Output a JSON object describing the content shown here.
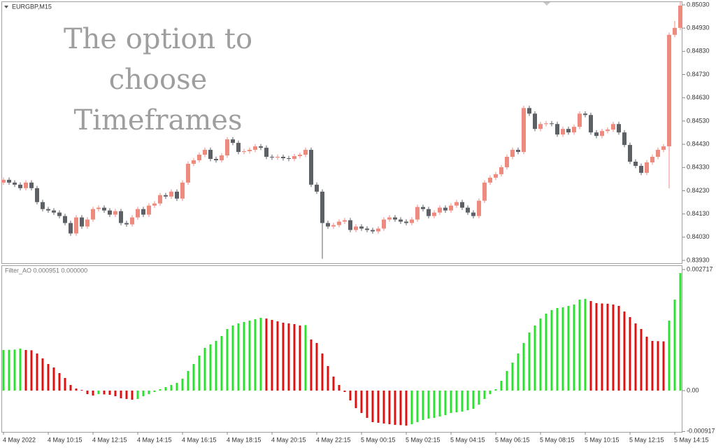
{
  "chart_data": [
    {
      "type": "candlestick",
      "title": "EURGBP,M15",
      "annotation": [
        "The option to",
        "choose",
        "Timeframes"
      ],
      "up_color": "#ef8a7f",
      "down_color": "#5d6166",
      "grid": false,
      "ylim": [
        0.83918,
        0.85045
      ],
      "yticks": [
        {
          "value": 0.8503,
          "label": "0.85030"
        },
        {
          "value": 0.8493,
          "label": "0.84930"
        },
        {
          "value": 0.8483,
          "label": "0.84830"
        },
        {
          "value": 0.8473,
          "label": "0.84730"
        },
        {
          "value": 0.8463,
          "label": "0.84630"
        },
        {
          "value": 0.8453,
          "label": "0.84530"
        },
        {
          "value": 0.8443,
          "label": "0.84430"
        },
        {
          "value": 0.8433,
          "label": "0.84330"
        },
        {
          "value": 0.8423,
          "label": "0.84230"
        },
        {
          "value": 0.8413,
          "label": "0.84130"
        },
        {
          "value": 0.8403,
          "label": "0.84030"
        },
        {
          "value": 0.8393,
          "label": "0.83930"
        }
      ],
      "categories": [
        "4 May 2022",
        null,
        null,
        null,
        null,
        null,
        null,
        null,
        "4 May 10:15",
        null,
        null,
        null,
        null,
        null,
        null,
        null,
        "4 May 12:15",
        null,
        null,
        null,
        null,
        null,
        null,
        null,
        "4 May 14:15",
        null,
        null,
        null,
        null,
        null,
        null,
        null,
        "4 May 16:15",
        null,
        null,
        null,
        null,
        null,
        null,
        null,
        "4 May 18:15",
        null,
        null,
        null,
        null,
        null,
        null,
        null,
        "4 May 20:15",
        null,
        null,
        null,
        null,
        null,
        null,
        null,
        "4 May 22:15",
        null,
        null,
        null,
        null,
        null,
        null,
        null,
        "5 May 00:15",
        null,
        null,
        null,
        null,
        null,
        null,
        null,
        "5 May 02:15",
        null,
        null,
        null,
        null,
        null,
        null,
        null,
        "5 May 04:15",
        null,
        null,
        null,
        null,
        null,
        null,
        null,
        "5 May 06:15",
        null,
        null,
        null,
        null,
        null,
        null,
        null,
        "5 May 08:15",
        null,
        null,
        null,
        null,
        null,
        null,
        null,
        "5 May 10:15",
        null,
        null,
        null,
        null,
        null,
        null,
        null,
        "5 May 12:15",
        null,
        null,
        null,
        null,
        null,
        null,
        null,
        "5 May 14:15",
        null
      ],
      "open": [
        0.84265,
        0.84277,
        0.84265,
        0.84256,
        0.84241,
        0.84265,
        0.84241,
        0.84181,
        0.84151,
        0.84145,
        0.84136,
        0.84121,
        0.84091,
        0.84046,
        0.84115,
        0.84076,
        0.84106,
        0.84151,
        0.84157,
        0.84145,
        0.84127,
        0.84142,
        0.84091,
        0.84085,
        0.84115,
        0.84151,
        0.84127,
        0.84166,
        0.84175,
        0.84211,
        0.84205,
        0.84226,
        0.84196,
        0.84265,
        0.84346,
        0.84361,
        0.84385,
        0.84406,
        0.84367,
        0.84361,
        0.84382,
        0.84451,
        0.84436,
        0.84397,
        0.844,
        0.84406,
        0.84421,
        0.84415,
        0.84376,
        0.84373,
        0.84376,
        0.8437,
        0.84367,
        0.84379,
        0.84385,
        0.84406,
        0.84256,
        0.84226,
        0.84091,
        0.84076,
        0.84082,
        0.84097,
        0.84103,
        0.84061,
        0.84076,
        0.84067,
        0.84061,
        0.84055,
        0.84067,
        0.84106,
        0.84115,
        0.84106,
        0.84097,
        0.84091,
        0.84106,
        0.8416,
        0.84151,
        0.84121,
        0.84136,
        0.84157,
        0.84145,
        0.84166,
        0.84181,
        0.84157,
        0.84136,
        0.84121,
        0.84187,
        0.84265,
        0.84286,
        0.84301,
        0.84331,
        0.84376,
        0.84406,
        0.84397,
        0.84586,
        0.84562,
        0.84496,
        0.84517,
        0.8452,
        0.84517,
        0.84472,
        0.84496,
        0.84481,
        0.84505,
        0.84562,
        0.84556,
        0.84481,
        0.84466,
        0.84487,
        0.84493,
        0.84517,
        0.84481,
        0.84427,
        0.84355,
        0.84337,
        0.84307,
        0.84352,
        0.84376,
        0.84406,
        0.84421,
        0.84901,
        0.84931
      ],
      "high": [
        0.84287,
        0.84287,
        0.84275,
        0.84266,
        0.84275,
        0.84275,
        0.84251,
        0.84191,
        0.84161,
        0.84155,
        0.84146,
        0.84131,
        0.84101,
        0.84125,
        0.84125,
        0.84116,
        0.84161,
        0.84167,
        0.84167,
        0.84155,
        0.84152,
        0.84152,
        0.84101,
        0.84125,
        0.84161,
        0.84161,
        0.84176,
        0.84185,
        0.84221,
        0.84221,
        0.84236,
        0.84236,
        0.84275,
        0.84356,
        0.84371,
        0.84395,
        0.84416,
        0.84416,
        0.84377,
        0.84392,
        0.84461,
        0.84461,
        0.84446,
        0.8441,
        0.84416,
        0.84431,
        0.84431,
        0.84425,
        0.84386,
        0.84386,
        0.84386,
        0.8438,
        0.84389,
        0.84395,
        0.84416,
        0.84416,
        0.84266,
        0.84236,
        0.84101,
        0.84092,
        0.84107,
        0.84113,
        0.84113,
        0.84086,
        0.84086,
        0.84077,
        0.84071,
        0.84077,
        0.84116,
        0.84125,
        0.84125,
        0.84116,
        0.84107,
        0.84116,
        0.8417,
        0.8417,
        0.84161,
        0.84146,
        0.84167,
        0.84167,
        0.84176,
        0.84191,
        0.84191,
        0.84167,
        0.84146,
        0.84197,
        0.84275,
        0.84296,
        0.84311,
        0.84341,
        0.84386,
        0.84416,
        0.84416,
        0.84596,
        0.84596,
        0.84572,
        0.84527,
        0.8453,
        0.8453,
        0.84527,
        0.84506,
        0.84506,
        0.84515,
        0.84572,
        0.84572,
        0.84566,
        0.84491,
        0.84497,
        0.84503,
        0.84527,
        0.84527,
        0.84491,
        0.84437,
        0.84365,
        0.84347,
        0.84362,
        0.84386,
        0.84416,
        0.84431,
        0.84911,
        0.84961,
        0.85045
      ],
      "low": [
        0.84255,
        0.84255,
        0.84246,
        0.84231,
        0.84231,
        0.84231,
        0.84171,
        0.84141,
        0.84135,
        0.84126,
        0.84111,
        0.84081,
        0.84036,
        0.84036,
        0.84066,
        0.84066,
        0.84096,
        0.84141,
        0.84135,
        0.84117,
        0.84117,
        0.84081,
        0.84075,
        0.84075,
        0.84105,
        0.84117,
        0.84117,
        0.84156,
        0.84165,
        0.84195,
        0.84195,
        0.84186,
        0.84186,
        0.84255,
        0.84336,
        0.84351,
        0.84375,
        0.84357,
        0.84351,
        0.84351,
        0.84372,
        0.84426,
        0.84387,
        0.84387,
        0.8439,
        0.84396,
        0.84405,
        0.84366,
        0.84363,
        0.84363,
        0.8436,
        0.84357,
        0.84357,
        0.84369,
        0.84375,
        0.84246,
        0.84216,
        0.83937,
        0.84066,
        0.84066,
        0.84072,
        0.84087,
        0.84051,
        0.84051,
        0.84057,
        0.84051,
        0.84045,
        0.84045,
        0.84057,
        0.84096,
        0.84096,
        0.84087,
        0.84081,
        0.84081,
        0.84096,
        0.84141,
        0.84111,
        0.84111,
        0.84126,
        0.84135,
        0.84135,
        0.84156,
        0.84147,
        0.84126,
        0.84111,
        0.84111,
        0.84177,
        0.84255,
        0.84276,
        0.84291,
        0.84321,
        0.84366,
        0.84387,
        0.84387,
        0.84552,
        0.84486,
        0.84486,
        0.84507,
        0.84507,
        0.84462,
        0.84462,
        0.84471,
        0.84471,
        0.84495,
        0.84546,
        0.84471,
        0.84456,
        0.84456,
        0.84477,
        0.84483,
        0.84471,
        0.84417,
        0.84345,
        0.84327,
        0.84297,
        0.84297,
        0.84342,
        0.84366,
        0.84396,
        0.8424,
        0.84891,
        0.84921
      ],
      "close": [
        0.84277,
        0.84265,
        0.84256,
        0.84241,
        0.84265,
        0.84241,
        0.84181,
        0.84151,
        0.84145,
        0.84136,
        0.84121,
        0.84091,
        0.84046,
        0.84115,
        0.84076,
        0.84106,
        0.84151,
        0.84157,
        0.84145,
        0.84127,
        0.84142,
        0.84091,
        0.84085,
        0.84115,
        0.84151,
        0.84127,
        0.84166,
        0.84175,
        0.84211,
        0.84205,
        0.84226,
        0.84196,
        0.84265,
        0.84346,
        0.84361,
        0.84385,
        0.84406,
        0.84367,
        0.84361,
        0.84382,
        0.84451,
        0.84436,
        0.84397,
        0.844,
        0.84406,
        0.84421,
        0.84415,
        0.84376,
        0.84373,
        0.84376,
        0.8437,
        0.84367,
        0.84379,
        0.84385,
        0.84406,
        0.84256,
        0.84226,
        0.84091,
        0.84076,
        0.84082,
        0.84097,
        0.84103,
        0.84061,
        0.84076,
        0.84067,
        0.84061,
        0.84055,
        0.84067,
        0.84106,
        0.84115,
        0.84106,
        0.84097,
        0.84091,
        0.84106,
        0.8416,
        0.84151,
        0.84121,
        0.84136,
        0.84157,
        0.84145,
        0.84166,
        0.84181,
        0.84157,
        0.84136,
        0.84121,
        0.84187,
        0.84265,
        0.84286,
        0.84301,
        0.84331,
        0.84376,
        0.84406,
        0.84397,
        0.84586,
        0.84562,
        0.84496,
        0.84517,
        0.8452,
        0.84517,
        0.84472,
        0.84496,
        0.84481,
        0.84505,
        0.84562,
        0.84556,
        0.84481,
        0.84466,
        0.84487,
        0.84493,
        0.84517,
        0.84481,
        0.84427,
        0.84355,
        0.84337,
        0.84307,
        0.84352,
        0.84376,
        0.84406,
        0.84421,
        0.84901,
        0.84931,
        0.85027
      ]
    },
    {
      "type": "bar",
      "title": "Filter_AO 0.000951 0.000000",
      "up_color": "#2ee02e",
      "down_color": "#dd1111",
      "grid": false,
      "ylim": [
        -0.000927,
        0.002796
      ],
      "yticks": [
        0.002717,
        {
          "value": 0,
          "label": "0.00"
        },
        -0.000917
      ],
      "values": [
        0.000911,
        0.000915,
        0.00092,
        0.000942,
        0.000911,
        0.000905,
        0.000832,
        0.000722,
        0.000597,
        0.000518,
        0.000393,
        0.000283,
        0.000126,
        4.7e-05,
        1.6e-05,
        -7.9e-05,
        -0.00011,
        -7.9e-05,
        -8.5e-05,
        -9.4e-05,
        -0.000126,
        -0.000173,
        -0.000188,
        -0.000204,
        -0.000188,
        -0.000126,
        -7.9e-05,
        -3.1e-05,
        3.1e-05,
        7.9e-05,
        0.000126,
        0.000173,
        0.000267,
        0.00044,
        0.000597,
        0.000785,
        0.000958,
        0.001036,
        0.001115,
        0.001225,
        0.001382,
        0.00146,
        0.001507,
        0.001539,
        0.00157,
        0.001601,
        0.001633,
        0.001617,
        0.001586,
        0.001554,
        0.001523,
        0.001507,
        0.001492,
        0.00146,
        0.00147,
        0.001146,
        0.001068,
        0.000832,
        0.00055,
        0.000314,
        0.000126,
        -3.1e-05,
        -0.00022,
        -0.000393,
        -0.000502,
        -0.000612,
        -0.000707,
        -0.000722,
        -0.000738,
        -0.000754,
        -0.000769,
        -0.000775,
        -0.000785,
        -0.000754,
        -0.000707,
        -0.000659,
        -0.000628,
        -0.000612,
        -0.000581,
        -0.00055,
        -0.000502,
        -0.000487,
        -0.000471,
        -0.00044,
        -0.000408,
        -0.000314,
        -0.000188,
        -7.9e-05,
        3.1e-05,
        0.00022,
        0.00044,
        0.000628,
        0.000832,
        0.001068,
        0.001303,
        0.00146,
        0.001617,
        0.001727,
        0.001806,
        0.001853,
        0.001868,
        0.0019,
        0.001931,
        0.002041,
        0.002057,
        0.00201,
        0.001963,
        0.001955,
        0.00195,
        0.001931,
        0.0019,
        0.001774,
        0.001649,
        0.001507,
        0.001382,
        0.001209,
        0.001115,
        0.00111,
        0.001105,
        0.00157,
        0.002041,
        0.002638
      ]
    }
  ]
}
